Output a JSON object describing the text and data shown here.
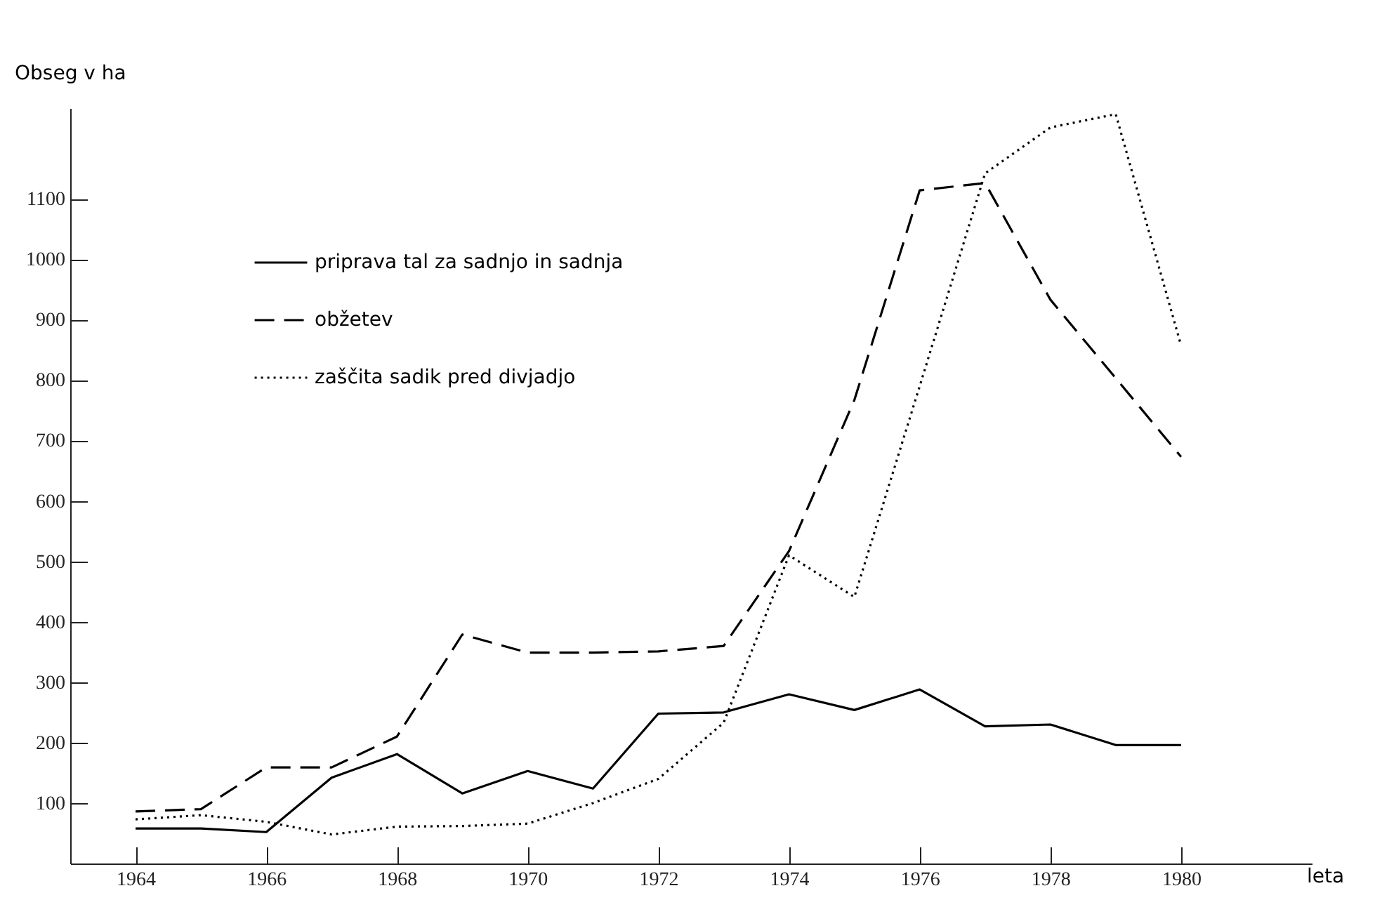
{
  "chart_data": {
    "type": "line",
    "xlabel": "leta",
    "ylabel": "Obseg v ha",
    "x": [
      1964,
      1965,
      1966,
      1967,
      1968,
      1969,
      1970,
      1971,
      1972,
      1973,
      1974,
      1975,
      1976,
      1977,
      1978,
      1979,
      1980
    ],
    "series": [
      {
        "name": "priprava tal za sadnjo in sadnja",
        "color": "#000000",
        "line_style": "solid",
        "values": [
          58,
          58,
          52,
          142,
          181,
          116,
          153,
          124,
          248,
          250,
          280,
          254,
          288,
          227,
          230,
          196,
          196
        ]
      },
      {
        "name": "obžetev",
        "color": "#000000",
        "line_style": "dashed",
        "values": [
          86,
          90,
          159,
          159,
          210,
          379,
          349,
          349,
          351,
          360,
          517,
          767,
          1114,
          1126,
          933,
          803,
          673
        ]
      },
      {
        "name": "zaščita sadik pred divjadjo",
        "color": "#000000",
        "line_style": "dotted",
        "values": [
          73,
          80,
          69,
          48,
          61,
          62,
          66,
          100,
          140,
          233,
          510,
          441,
          790,
          1142,
          1218,
          1240,
          857
        ]
      }
    ],
    "xlim": [
      1963,
      1982
    ],
    "xticks": [
      1964,
      1966,
      1968,
      1970,
      1972,
      1974,
      1976,
      1978,
      1980
    ],
    "ylim": [
      0,
      1250
    ],
    "yticks": [
      100,
      200,
      300,
      400,
      500,
      600,
      700,
      800,
      900,
      1000,
      1100
    ],
    "grid": false,
    "legend": "top left",
    "marker": "none"
  }
}
